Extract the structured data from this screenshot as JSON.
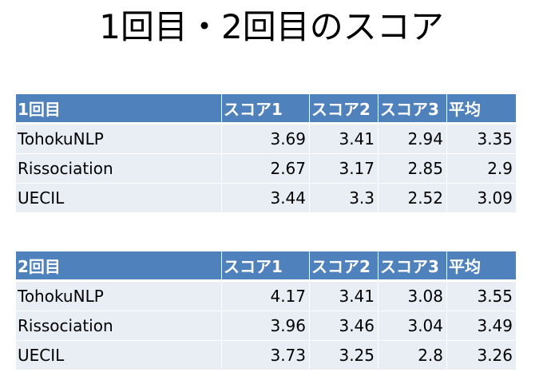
{
  "title": "1回目・2回目のスコア",
  "tables": [
    {
      "header": [
        "1回目",
        "スコア1",
        "スコア2",
        "スコア3",
        "平均"
      ],
      "rows": [
        {
          "name": "TohokuNLP",
          "s1": "3.69",
          "s2": "3.41",
          "s3": "2.94",
          "avg": "3.35"
        },
        {
          "name": "Rissociation",
          "s1": "2.67",
          "s2": "3.17",
          "s3": "2.85",
          "avg": "2.9"
        },
        {
          "name": "UECIL",
          "s1": "3.44",
          "s2": "3.3",
          "s3": "2.52",
          "avg": "3.09"
        }
      ]
    },
    {
      "header": [
        "2回目",
        "スコア1",
        "スコア2",
        "スコア3",
        "平均"
      ],
      "rows": [
        {
          "name": "TohokuNLP",
          "s1": "4.17",
          "s2": "3.41",
          "s3": "3.08",
          "avg": "3.55"
        },
        {
          "name": "Rissociation",
          "s1": "3.96",
          "s2": "3.46",
          "s3": "3.04",
          "avg": "3.49"
        },
        {
          "name": "UECIL",
          "s1": "3.73",
          "s2": "3.25",
          "s3": "2.8",
          "avg": "3.26"
        }
      ]
    }
  ],
  "colors": {
    "header_bg": "#4f81bd",
    "header_text": "#ffffff",
    "row_band_light": "#e9edf4",
    "row_band_dark": "#d0d8e8"
  }
}
